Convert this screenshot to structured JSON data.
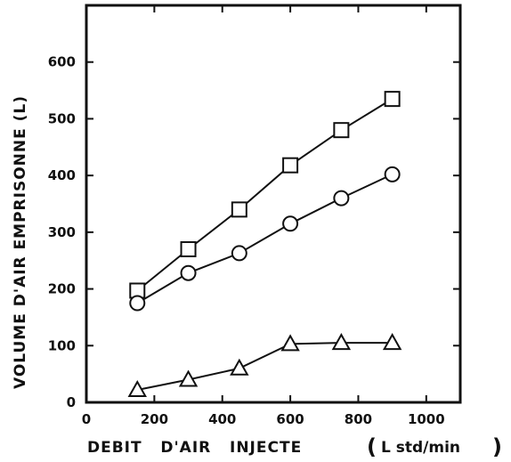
{
  "chart_data": {
    "type": "line",
    "title": "",
    "xlabel": "DEBIT   D'AIR   INJECTE",
    "xlabel_unit_open": "(",
    "xlabel_unit": "L std/min",
    "xlabel_unit_close": ")",
    "ylabel": "VOLUME D'AIR EMPRISONNE (L)",
    "xlim": [
      0,
      1100
    ],
    "ylim": [
      0,
      700
    ],
    "x_ticks": [
      0,
      200,
      400,
      600,
      800,
      1000
    ],
    "y_ticks": [
      0,
      100,
      200,
      300,
      400,
      500,
      600
    ],
    "grid": false,
    "legend": "none",
    "series": [
      {
        "marker": "square",
        "x": [
          150,
          300,
          450,
          600,
          750,
          900
        ],
        "y": [
          197,
          270,
          340,
          418,
          480,
          535
        ]
      },
      {
        "marker": "circle",
        "x": [
          150,
          300,
          450,
          600,
          750,
          900
        ],
        "y": [
          175,
          228,
          263,
          315,
          360,
          402
        ]
      },
      {
        "marker": "triangle",
        "x": [
          150,
          300,
          450,
          600,
          750,
          900
        ],
        "y": [
          22,
          40,
          60,
          103,
          105,
          105
        ]
      }
    ]
  }
}
